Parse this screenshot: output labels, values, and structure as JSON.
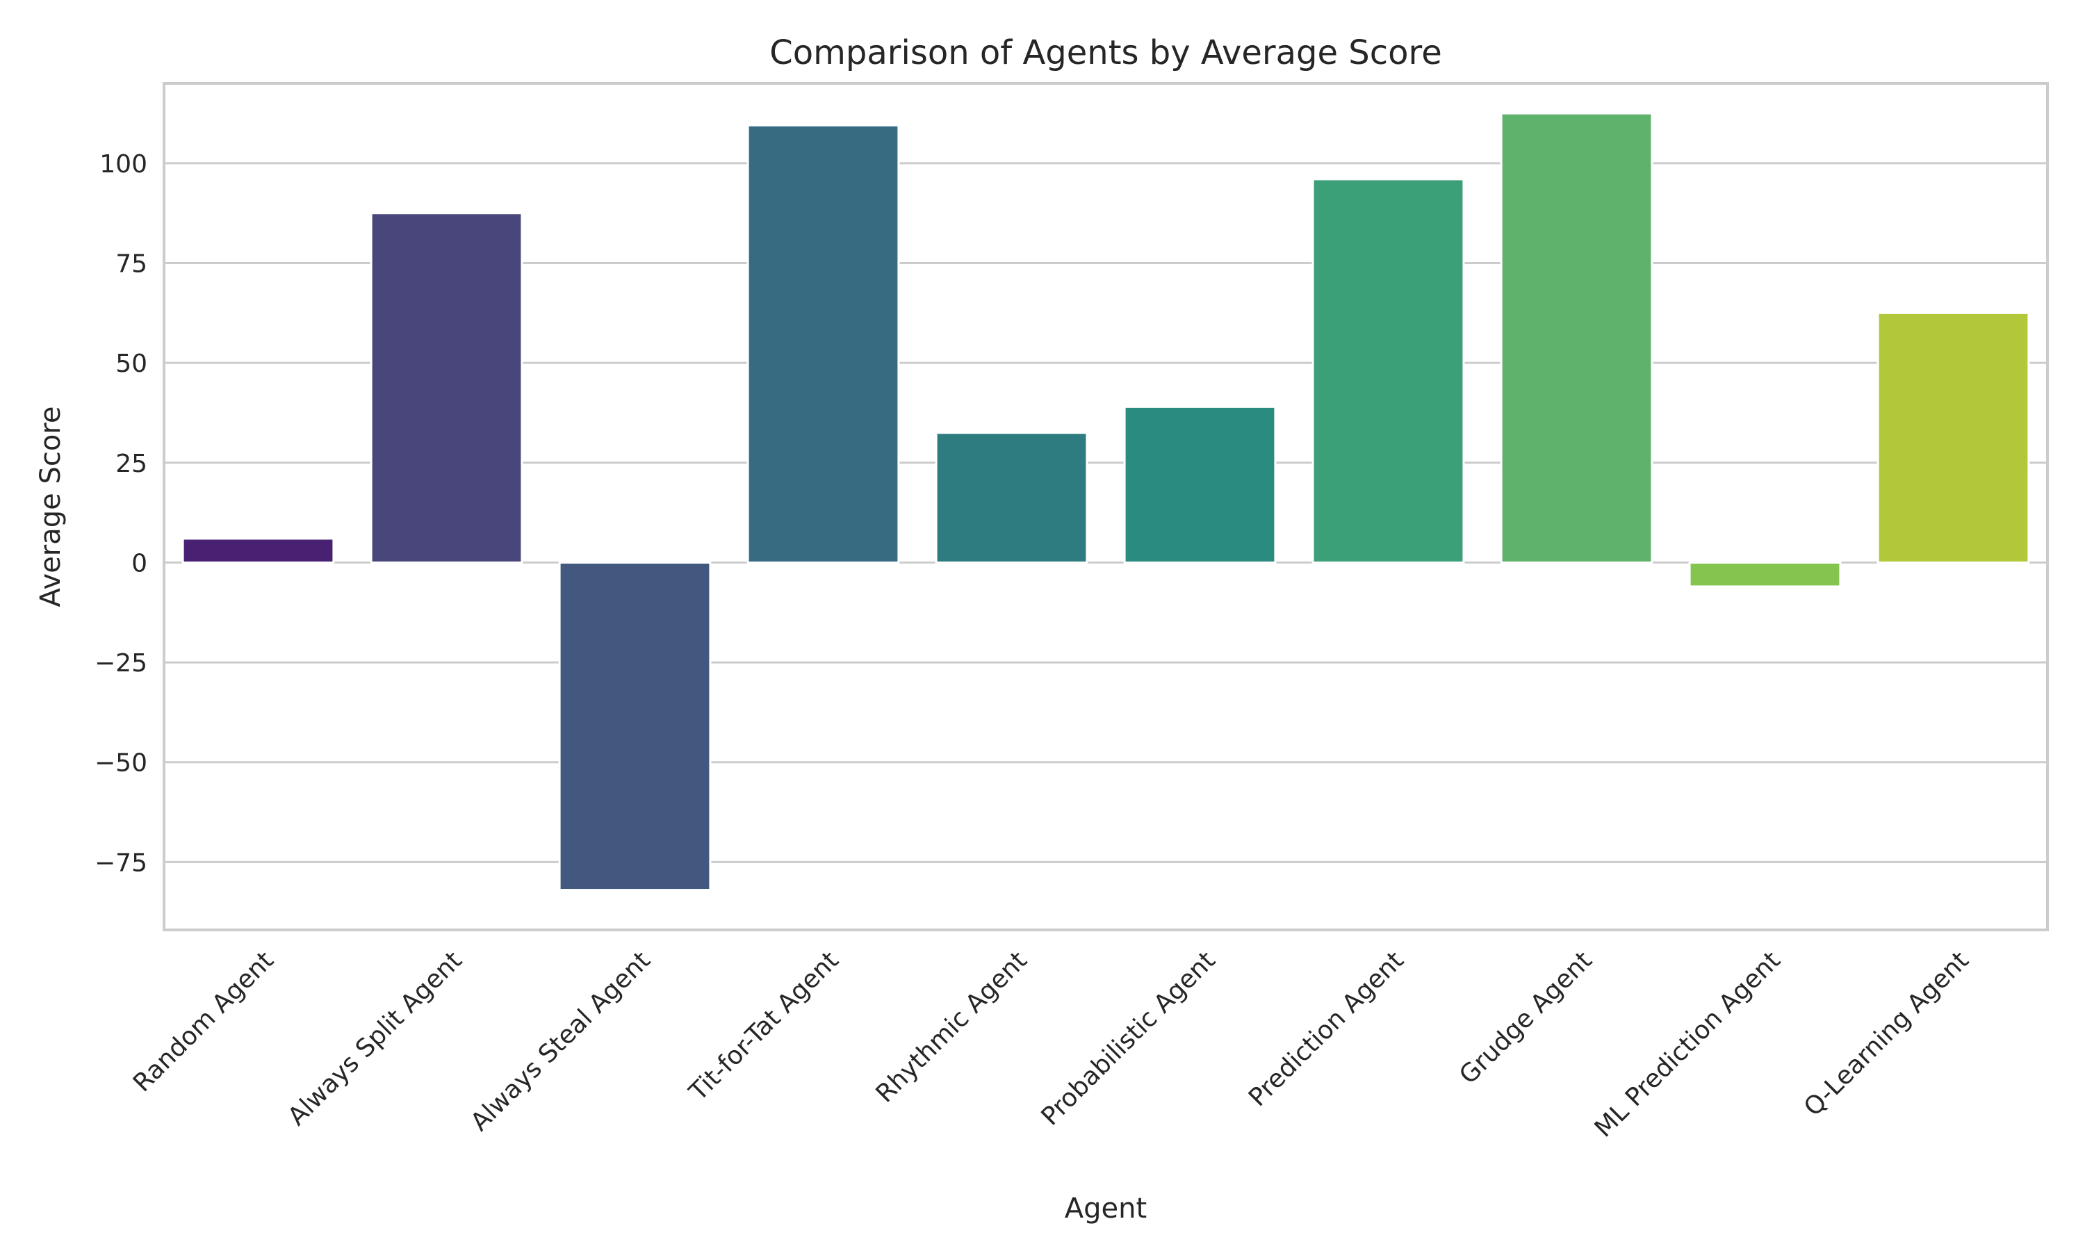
{
  "chart_data": {
    "type": "bar",
    "title": "Comparison of Agents by Average Score",
    "xlabel": "Agent",
    "ylabel": "Average Score",
    "categories": [
      "Random Agent",
      "Always Split Agent",
      "Always Steal Agent",
      "Tit-for-Tat Agent",
      "Rhythmic Agent",
      "Probabilistic Agent",
      "Prediction Agent",
      "Grudge Agent",
      "ML Prediction Agent",
      "Q-Learning Agent"
    ],
    "values": [
      6,
      87.5,
      -82,
      109.5,
      32.5,
      39,
      96,
      112.5,
      -6,
      62.5
    ],
    "colors": [
      "#482173",
      "#48467a",
      "#42587f",
      "#376b82",
      "#2f7c80",
      "#2a8b80",
      "#3b9f78",
      "#5fb26b",
      "#85c44e",
      "#b2c83a"
    ],
    "ylim": [
      -92,
      120
    ],
    "yticks": [
      -75,
      -50,
      -25,
      0,
      25,
      50,
      75,
      100
    ],
    "ytick_labels": [
      "−75",
      "−50",
      "−25",
      "0",
      "25",
      "50",
      "75",
      "100"
    ],
    "grid": "horizontal",
    "legend": "none",
    "grid_color": "#cccccc",
    "spine_color": "#cccccc"
  }
}
